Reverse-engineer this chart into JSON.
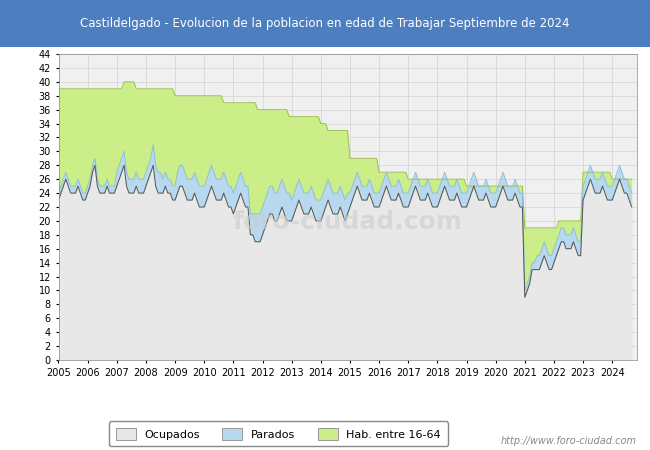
{
  "title": "Castildelgado - Evolucion de la poblacion en edad de Trabajar Septiembre de 2024",
  "title_bg": "#4d7ebf",
  "title_color": "white",
  "ylim": [
    0,
    44
  ],
  "yticks": [
    0,
    2,
    4,
    6,
    8,
    10,
    12,
    14,
    16,
    18,
    20,
    22,
    24,
    26,
    28,
    30,
    32,
    34,
    36,
    38,
    40,
    42,
    44
  ],
  "watermark": "foro-ciudad.com",
  "watermark2": "http://www.foro-ciudad.com",
  "legend_labels": [
    "Ocupados",
    "Parados",
    "Hab. entre 16-64"
  ],
  "legend_colors": [
    "#e8e8e8",
    "#b8d8f0",
    "#ccee88"
  ],
  "plot_bg": "#f0f0f0",
  "hab1664": [
    39,
    39,
    39,
    39,
    39,
    39,
    39,
    39,
    39,
    39,
    39,
    39,
    39,
    39,
    39,
    39,
    39,
    39,
    39,
    39,
    39,
    39,
    39,
    39,
    39,
    39,
    39,
    40,
    40,
    40,
    40,
    40,
    39,
    39,
    39,
    39,
    39,
    39,
    39,
    39,
    39,
    39,
    39,
    39,
    39,
    39,
    39,
    39,
    38,
    38,
    38,
    38,
    38,
    38,
    38,
    38,
    38,
    38,
    38,
    38,
    38,
    38,
    38,
    38,
    38,
    38,
    38,
    38,
    37,
    37,
    37,
    37,
    37,
    37,
    37,
    37,
    37,
    37,
    37,
    37,
    37,
    37,
    36,
    36,
    36,
    36,
    36,
    36,
    36,
    36,
    36,
    36,
    36,
    36,
    36,
    35,
    35,
    35,
    35,
    35,
    35,
    35,
    35,
    35,
    35,
    35,
    35,
    35,
    34,
    34,
    34,
    33,
    33,
    33,
    33,
    33,
    33,
    33,
    33,
    33,
    29,
    29,
    29,
    29,
    29,
    29,
    29,
    29,
    29,
    29,
    29,
    29,
    27,
    27,
    27,
    27,
    27,
    27,
    27,
    27,
    27,
    27,
    27,
    27,
    26,
    26,
    26,
    26,
    26,
    26,
    26,
    26,
    26,
    26,
    26,
    26,
    26,
    26,
    26,
    26,
    26,
    26,
    26,
    26,
    26,
    26,
    26,
    26,
    25,
    25,
    25,
    25,
    25,
    25,
    25,
    25,
    25,
    25,
    25,
    25,
    25,
    25,
    25,
    25,
    25,
    25,
    25,
    25,
    25,
    25,
    25,
    25,
    19,
    19,
    19,
    19,
    19,
    19,
    19,
    19,
    19,
    19,
    19,
    19,
    19,
    19,
    20,
    20,
    20,
    20,
    20,
    20,
    20,
    20,
    20,
    20,
    27,
    27,
    27,
    27,
    27,
    27,
    27,
    27,
    27,
    27,
    27,
    27,
    26,
    26,
    26,
    26,
    26,
    26,
    26,
    26,
    26
  ],
  "ocupados": [
    23,
    24,
    25,
    26,
    25,
    24,
    24,
    24,
    25,
    24,
    23,
    23,
    24,
    25,
    27,
    28,
    25,
    24,
    24,
    24,
    25,
    24,
    24,
    24,
    25,
    26,
    27,
    28,
    25,
    24,
    24,
    24,
    25,
    24,
    24,
    24,
    25,
    26,
    27,
    28,
    25,
    24,
    24,
    24,
    25,
    24,
    24,
    23,
    23,
    24,
    25,
    25,
    24,
    23,
    23,
    23,
    24,
    23,
    22,
    22,
    22,
    23,
    24,
    25,
    24,
    23,
    23,
    23,
    24,
    23,
    22,
    22,
    21,
    22,
    23,
    24,
    23,
    22,
    22,
    18,
    18,
    17,
    17,
    17,
    18,
    19,
    20,
    21,
    21,
    20,
    20,
    21,
    22,
    21,
    20,
    20,
    20,
    21,
    22,
    23,
    22,
    21,
    21,
    21,
    22,
    21,
    20,
    20,
    20,
    21,
    22,
    23,
    22,
    21,
    21,
    21,
    22,
    21,
    20,
    21,
    22,
    23,
    24,
    25,
    24,
    23,
    23,
    23,
    24,
    23,
    22,
    22,
    22,
    23,
    24,
    25,
    24,
    23,
    23,
    23,
    24,
    23,
    22,
    22,
    22,
    23,
    24,
    25,
    24,
    23,
    23,
    23,
    24,
    23,
    22,
    22,
    22,
    23,
    24,
    25,
    24,
    23,
    23,
    23,
    24,
    23,
    22,
    22,
    22,
    23,
    24,
    25,
    24,
    23,
    23,
    23,
    24,
    23,
    22,
    22,
    22,
    23,
    24,
    25,
    24,
    23,
    23,
    23,
    24,
    23,
    22,
    22,
    9,
    10,
    11,
    13,
    13,
    13,
    13,
    14,
    15,
    14,
    13,
    13,
    14,
    15,
    16,
    17,
    17,
    16,
    16,
    16,
    17,
    16,
    15,
    15,
    23,
    24,
    25,
    26,
    25,
    24,
    24,
    24,
    25,
    24,
    23,
    23,
    23,
    24,
    25,
    26,
    25,
    24,
    24,
    23,
    22
  ],
  "parados": [
    1,
    1,
    1,
    1,
    1,
    1,
    1,
    1,
    1,
    1,
    1,
    1,
    1,
    1,
    1,
    1,
    1,
    1,
    1,
    1,
    1,
    1,
    1,
    1,
    2,
    2,
    2,
    2,
    2,
    2,
    2,
    2,
    2,
    2,
    2,
    2,
    2,
    2,
    2,
    3,
    3,
    3,
    3,
    2,
    2,
    2,
    2,
    2,
    2,
    3,
    3,
    3,
    3,
    3,
    3,
    3,
    3,
    3,
    3,
    3,
    3,
    3,
    3,
    3,
    3,
    3,
    3,
    3,
    3,
    3,
    3,
    3,
    3,
    3,
    3,
    3,
    3,
    3,
    3,
    3,
    3,
    4,
    4,
    4,
    4,
    4,
    4,
    4,
    4,
    4,
    4,
    4,
    4,
    4,
    4,
    4,
    3,
    3,
    3,
    3,
    3,
    3,
    3,
    3,
    3,
    3,
    3,
    3,
    3,
    3,
    3,
    3,
    3,
    3,
    3,
    3,
    3,
    3,
    3,
    3,
    2,
    2,
    2,
    2,
    2,
    2,
    2,
    2,
    2,
    2,
    2,
    2,
    2,
    2,
    2,
    2,
    2,
    2,
    2,
    2,
    2,
    2,
    2,
    2,
    2,
    2,
    2,
    2,
    2,
    2,
    2,
    2,
    2,
    2,
    2,
    2,
    2,
    2,
    2,
    2,
    2,
    2,
    2,
    2,
    2,
    2,
    2,
    2,
    2,
    2,
    2,
    2,
    2,
    2,
    2,
    2,
    2,
    2,
    2,
    2,
    2,
    2,
    2,
    2,
    2,
    2,
    2,
    2,
    2,
    2,
    2,
    2,
    1,
    1,
    1,
    1,
    1,
    2,
    2,
    2,
    2,
    2,
    2,
    2,
    2,
    2,
    2,
    2,
    2,
    2,
    2,
    2,
    2,
    2,
    2,
    2,
    2,
    2,
    2,
    2,
    2,
    2,
    2,
    2,
    2,
    2,
    2,
    2,
    2,
    2,
    2,
    2,
    2,
    2,
    2,
    2,
    2
  ]
}
